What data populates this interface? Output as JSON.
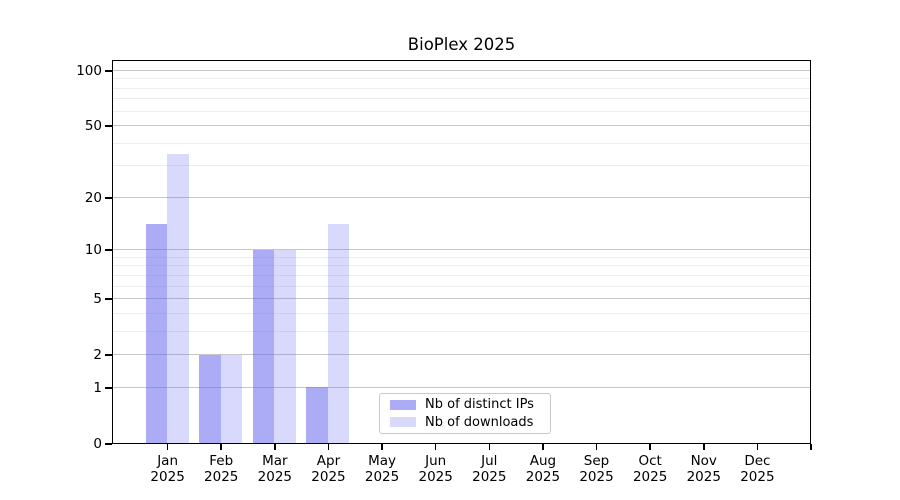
{
  "chart_data": {
    "type": "bar",
    "title": "BioPlex 2025",
    "x_categories": [
      {
        "month": "Jan",
        "year": "2025"
      },
      {
        "month": "Feb",
        "year": "2025"
      },
      {
        "month": "Mar",
        "year": "2025"
      },
      {
        "month": "Apr",
        "year": "2025"
      },
      {
        "month": "May",
        "year": "2025"
      },
      {
        "month": "Jun",
        "year": "2025"
      },
      {
        "month": "Jul",
        "year": "2025"
      },
      {
        "month": "Aug",
        "year": "2025"
      },
      {
        "month": "Sep",
        "year": "2025"
      },
      {
        "month": "Oct",
        "year": "2025"
      },
      {
        "month": "Nov",
        "year": "2025"
      },
      {
        "month": "Dec",
        "year": "2025"
      }
    ],
    "series": [
      {
        "name": "Nb of distinct IPs",
        "color": "rgba(102,102,238,0.55)",
        "values": [
          14,
          2,
          10,
          1,
          0,
          0,
          0,
          0,
          0,
          0,
          0,
          0
        ]
      },
      {
        "name": "Nb of downloads",
        "color": "rgba(102,102,238,0.25)",
        "values": [
          35,
          2,
          10,
          14,
          0,
          0,
          0,
          0,
          0,
          0,
          0,
          0
        ]
      }
    ],
    "y_axis": {
      "scale": "log1p",
      "range": [
        0,
        110
      ],
      "major_ticks": [
        {
          "value": 0,
          "label": "0"
        },
        {
          "value": 1,
          "label": "1"
        },
        {
          "value": 2,
          "label": "2"
        },
        {
          "value": 5,
          "label": "5"
        },
        {
          "value": 10,
          "label": "10"
        },
        {
          "value": 20,
          "label": "20"
        },
        {
          "value": 50,
          "label": "50"
        },
        {
          "value": 100,
          "label": "100"
        }
      ],
      "minor_ticks": [
        3,
        4,
        6,
        7,
        8,
        9,
        30,
        40,
        60,
        70,
        80,
        90
      ]
    },
    "grid": {
      "major_color": "#c6c6c6",
      "minor_color": "#ededed"
    },
    "legend": {
      "border_color": "#c9c9c9",
      "background": "#ffffff"
    }
  }
}
